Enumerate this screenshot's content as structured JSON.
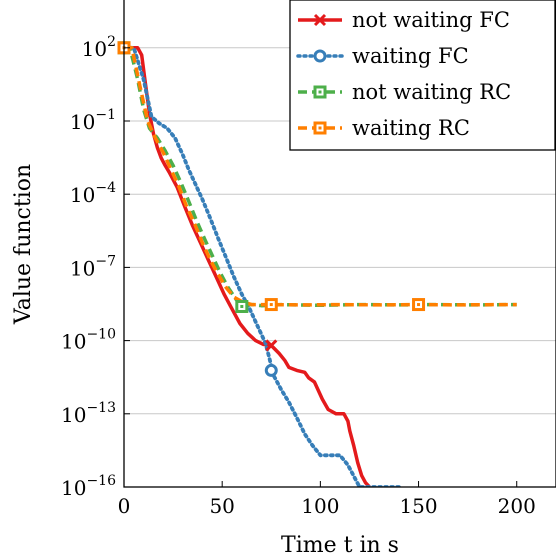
{
  "chart_data": {
    "type": "line",
    "xlabel": "Time t in s",
    "ylabel": "Value function",
    "y_scale": "log10",
    "xlim": [
      0,
      220
    ],
    "ylim": [
      1e-16,
      10000.0
    ],
    "grid": "horizontal",
    "legend_position": "top-right",
    "x_ticks": [
      {
        "value": 0,
        "label": "0"
      },
      {
        "value": 50,
        "label": "50"
      },
      {
        "value": 100,
        "label": "100"
      },
      {
        "value": 150,
        "label": "150"
      },
      {
        "value": 200,
        "label": "200"
      }
    ],
    "y_ticks": [
      {
        "value": 100,
        "base": "10",
        "exp": "2"
      },
      {
        "value": 0.1,
        "base": "10",
        "exp": "−1"
      },
      {
        "value": 0.0001,
        "base": "10",
        "exp": "−4"
      },
      {
        "value": 1e-07,
        "base": "10",
        "exp": "−7"
      },
      {
        "value": 1e-10,
        "base": "10",
        "exp": "−10"
      },
      {
        "value": 1e-13,
        "base": "10",
        "exp": "−13"
      },
      {
        "value": 1e-16,
        "base": "10",
        "exp": "−16"
      }
    ],
    "series": [
      {
        "name": "not waiting FC",
        "color": "#e41a1c",
        "dash": "solid",
        "marker": "x",
        "markers_at": [
          [
            0,
            100
          ],
          [
            75,
            6.3e-11
          ]
        ],
        "points": [
          [
            0,
            100
          ],
          [
            7,
            100
          ],
          [
            9,
            50
          ],
          [
            11,
            3
          ],
          [
            13,
            0.2
          ],
          [
            15,
            0.03
          ],
          [
            17,
            0.008
          ],
          [
            19,
            0.003
          ],
          [
            21,
            0.0015
          ],
          [
            23,
            0.0008
          ],
          [
            27,
            0.0002
          ],
          [
            31,
            3e-05
          ],
          [
            35,
            5e-06
          ],
          [
            39,
            1e-06
          ],
          [
            43,
            2e-07
          ],
          [
            47,
            4e-08
          ],
          [
            51,
            8e-09
          ],
          [
            55,
            2e-09
          ],
          [
            59,
            5e-10
          ],
          [
            63,
            2e-10
          ],
          [
            67,
            1e-10
          ],
          [
            71,
            7e-11
          ],
          [
            75,
            6.3e-11
          ],
          [
            79,
            3e-11
          ],
          [
            82,
            1.5e-11
          ],
          [
            84,
            8e-12
          ],
          [
            88,
            6e-12
          ],
          [
            92,
            5e-12
          ],
          [
            94,
            3e-12
          ],
          [
            97,
            2e-12
          ],
          [
            101,
            4e-13
          ],
          [
            104,
            1.5e-13
          ],
          [
            108,
            1e-13
          ],
          [
            112,
            1e-13
          ],
          [
            114,
            5e-14
          ],
          [
            115,
            2e-14
          ],
          [
            117,
            5e-15
          ],
          [
            119,
            1e-15
          ],
          [
            121,
            3e-16
          ],
          [
            123,
            1.5e-16
          ],
          [
            125,
            1e-16
          ]
        ]
      },
      {
        "name": "waiting FC",
        "color": "#377eb8",
        "dash": "dotted",
        "marker": "circle",
        "markers_at": [
          [
            0,
            100
          ],
          [
            75,
            6e-12
          ]
        ],
        "points": [
          [
            0,
            100
          ],
          [
            5,
            100
          ],
          [
            10,
            5
          ],
          [
            14,
            0.15
          ],
          [
            18,
            0.08
          ],
          [
            22,
            0.05
          ],
          [
            26,
            0.02
          ],
          [
            30,
            0.004
          ],
          [
            33,
            0.001
          ],
          [
            36,
            0.0003
          ],
          [
            40,
            6e-05
          ],
          [
            44,
            1e-05
          ],
          [
            48,
            1.5e-06
          ],
          [
            52,
            2.5e-07
          ],
          [
            56,
            4e-08
          ],
          [
            60,
            8e-09
          ],
          [
            64,
            2e-09
          ],
          [
            68,
            4e-10
          ],
          [
            72,
            8e-11
          ],
          [
            74,
            2e-11
          ],
          [
            76,
            4e-12
          ],
          [
            80,
            1e-12
          ],
          [
            84,
            3e-13
          ],
          [
            88,
            7e-14
          ],
          [
            92,
            1.5e-14
          ],
          [
            96,
            5e-15
          ],
          [
            100,
            2e-15
          ],
          [
            104,
            2e-15
          ],
          [
            110,
            2e-15
          ],
          [
            114,
            8e-16
          ],
          [
            118,
            2e-16
          ],
          [
            120,
            1e-16
          ],
          [
            140,
            1e-16
          ]
        ]
      },
      {
        "name": "not waiting RC",
        "color": "#4daf4a",
        "dash": "dashed",
        "marker": "square-dot",
        "markers_at": [
          [
            0,
            100
          ],
          [
            60,
            2.5e-09
          ]
        ],
        "points": [
          [
            0,
            100
          ],
          [
            3,
            100
          ],
          [
            7,
            5
          ],
          [
            10,
            0.3
          ],
          [
            13,
            0.05
          ],
          [
            17,
            0.02
          ],
          [
            21,
            0.006
          ],
          [
            25,
            0.0015
          ],
          [
            29,
            0.0003
          ],
          [
            33,
            5e-05
          ],
          [
            37,
            8e-06
          ],
          [
            41,
            1.5e-06
          ],
          [
            45,
            3e-07
          ],
          [
            49,
            6e-08
          ],
          [
            53,
            1.5e-08
          ],
          [
            57,
            5e-09
          ],
          [
            60,
            2.5e-09
          ],
          [
            63,
            3e-09
          ],
          [
            66,
            3e-09
          ],
          [
            70,
            2.7e-09
          ],
          [
            80,
            3e-09
          ],
          [
            100,
            2.8e-09
          ],
          [
            120,
            3e-09
          ],
          [
            140,
            2.9e-09
          ],
          [
            160,
            3e-09
          ],
          [
            180,
            2.9e-09
          ],
          [
            200,
            3e-09
          ]
        ]
      },
      {
        "name": "waiting RC",
        "color": "#ff7f00",
        "dash": "dashed",
        "marker": "square-dot",
        "markers_at": [
          [
            0,
            100
          ],
          [
            75,
            3e-09
          ],
          [
            150,
            3e-09
          ]
        ],
        "points": [
          [
            0,
            100
          ],
          [
            4,
            100
          ],
          [
            8,
            3
          ],
          [
            12,
            0.1
          ],
          [
            16,
            0.02
          ],
          [
            20,
            0.005
          ],
          [
            24,
            0.001
          ],
          [
            28,
            0.0002
          ],
          [
            32,
            3e-05
          ],
          [
            36,
            6e-06
          ],
          [
            40,
            1e-06
          ],
          [
            44,
            2e-07
          ],
          [
            48,
            5e-08
          ],
          [
            52,
            1.5e-08
          ],
          [
            56,
            6e-09
          ],
          [
            60,
            4e-09
          ],
          [
            65,
            3e-09
          ],
          [
            75,
            3e-09
          ],
          [
            90,
            2.9e-09
          ],
          [
            110,
            3e-09
          ],
          [
            130,
            2.9e-09
          ],
          [
            150,
            3e-09
          ],
          [
            170,
            2.9e-09
          ],
          [
            190,
            3e-09
          ],
          [
            200,
            3e-09
          ]
        ]
      }
    ]
  }
}
